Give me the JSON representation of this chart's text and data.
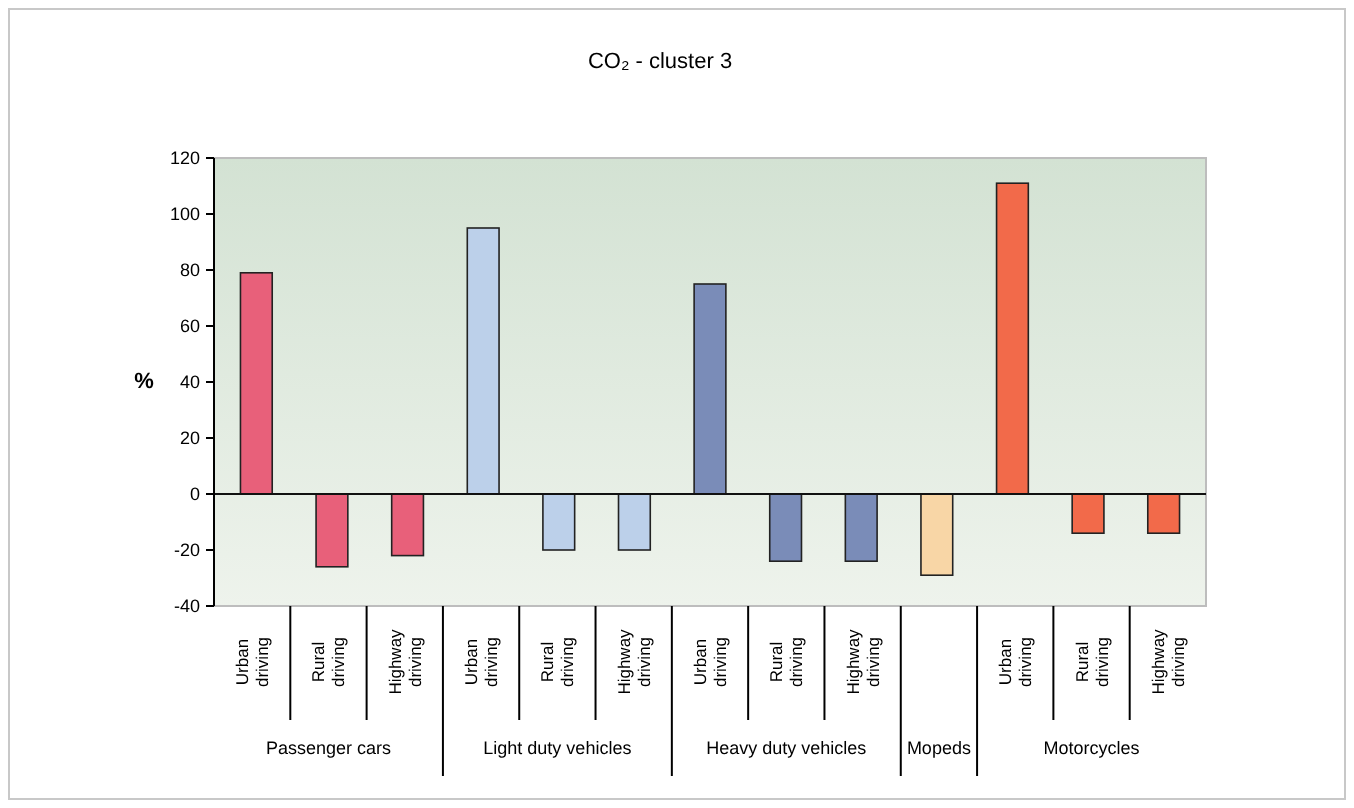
{
  "chart_data": {
    "type": "bar",
    "title": "CO₂ - cluster 3",
    "ylabel": "%",
    "categories": [
      "Urban driving",
      "Rural driving",
      "Highway driving",
      "Urban driving",
      "Rural driving",
      "Highway driving",
      "Urban driving",
      "Rural driving",
      "Highway driving",
      null,
      "Urban driving",
      "Rural driving",
      "Highway driving"
    ],
    "values": [
      79,
      -26,
      -22,
      95,
      -20,
      -20,
      75,
      -24,
      -24,
      -29,
      111,
      -14,
      -14
    ],
    "colors": [
      "#e8607a",
      "#e8607a",
      "#e8607a",
      "#bcd0ea",
      "#bcd0ea",
      "#bcd0ea",
      "#7a8cb8",
      "#7a8cb8",
      "#7a8cb8",
      "#f8d6a6",
      "#f26a4a",
      "#f26a4a",
      "#f26a4a"
    ],
    "ylim": [
      -40,
      120
    ],
    "yticks": [
      -40,
      -20,
      0,
      20,
      40,
      60,
      80,
      100,
      120
    ],
    "annotations": [
      "Passenger cars",
      "Light duty vehicles",
      "Heavy duty vehicles",
      "Mopeds",
      "Motorcycles"
    ]
  }
}
